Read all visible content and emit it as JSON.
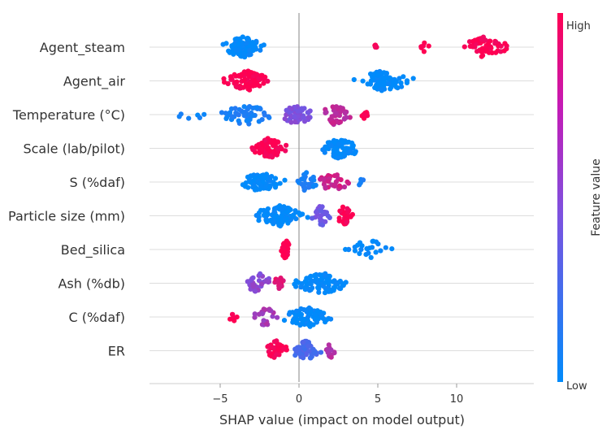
{
  "chart_data": {
    "type": "scatter",
    "subtype": "shap-beeswarm",
    "xlabel": "SHAP value (impact on model output)",
    "xticks": [
      -5,
      0,
      5,
      10
    ],
    "xlim": [
      -9.3,
      14.8
    ],
    "colorbar": {
      "title": "Feature value",
      "high_label": "High",
      "low_label": "Low",
      "low_color": "#008bfb",
      "mid_color": "#7c52e0",
      "high_color": "#ff0052"
    },
    "features": [
      {
        "name": "Agent_steam",
        "clusters": [
          {
            "min": -5.2,
            "max": -1.9,
            "n": 120,
            "color": 0.0
          },
          {
            "min": 4.5,
            "max": 5.0,
            "n": 5,
            "color": 1.0
          },
          {
            "min": 7.4,
            "max": 8.4,
            "n": 6,
            "color": 1.0
          },
          {
            "min": 10.0,
            "max": 13.6,
            "n": 60,
            "color": 1.0
          }
        ]
      },
      {
        "name": "Agent_air",
        "clusters": [
          {
            "min": -5.0,
            "max": -1.6,
            "n": 95,
            "color": 1.0
          },
          {
            "min": 3.2,
            "max": 7.6,
            "n": 80,
            "color": 0.0
          }
        ]
      },
      {
        "name": "Temperature (°C)",
        "clusters": [
          {
            "min": -8.3,
            "max": -5.3,
            "n": 6,
            "color": 0.05
          },
          {
            "min": -5.5,
            "max": -1.2,
            "n": 50,
            "color": 0.1
          },
          {
            "min": -1.5,
            "max": 1.2,
            "n": 50,
            "color": 0.5
          },
          {
            "min": 1.0,
            "max": 3.6,
            "n": 45,
            "color": 0.75
          },
          {
            "min": 3.8,
            "max": 4.6,
            "n": 8,
            "color": 1.0
          }
        ]
      },
      {
        "name": "Scale (lab/pilot)",
        "clusters": [
          {
            "min": -3.3,
            "max": -0.6,
            "n": 95,
            "color": 1.0
          },
          {
            "min": 1.0,
            "max": 4.2,
            "n": 80,
            "color": 0.0
          }
        ]
      },
      {
        "name": "S (%daf)",
        "clusters": [
          {
            "min": -4.1,
            "max": -0.6,
            "n": 75,
            "color": 0.0
          },
          {
            "min": -0.2,
            "max": 1.2,
            "n": 25,
            "color": 0.1
          },
          {
            "min": 1.0,
            "max": 3.5,
            "n": 30,
            "color": 0.8
          },
          {
            "min": 3.5,
            "max": 4.3,
            "n": 4,
            "color": 0.1
          }
        ]
      },
      {
        "name": "Particle size (mm)",
        "clusters": [
          {
            "min": -3.3,
            "max": 0.8,
            "n": 90,
            "color": 0.0
          },
          {
            "min": 0.6,
            "max": 2.2,
            "n": 25,
            "color": 0.45
          },
          {
            "min": 2.3,
            "max": 3.5,
            "n": 30,
            "color": 1.0
          }
        ]
      },
      {
        "name": "Bed_silica",
        "clusters": [
          {
            "min": -1.2,
            "max": -0.5,
            "n": 30,
            "color": 1.0
          },
          {
            "min": 2.4,
            "max": 6.3,
            "n": 25,
            "color": 0.0
          }
        ]
      },
      {
        "name": "Ash (%db)",
        "clusters": [
          {
            "min": -3.7,
            "max": -1.5,
            "n": 30,
            "color": 0.55
          },
          {
            "min": -1.8,
            "max": -0.8,
            "n": 15,
            "color": 0.9
          },
          {
            "min": -0.8,
            "max": 3.7,
            "n": 90,
            "color": 0.0
          }
        ]
      },
      {
        "name": "C (%daf)",
        "clusters": [
          {
            "min": -4.6,
            "max": -3.6,
            "n": 6,
            "color": 1.0
          },
          {
            "min": -3.0,
            "max": -1.2,
            "n": 25,
            "color": 0.65
          },
          {
            "min": -1.4,
            "max": 2.5,
            "n": 80,
            "color": 0.0
          }
        ]
      },
      {
        "name": "ER",
        "clusters": [
          {
            "min": -2.3,
            "max": -0.6,
            "n": 35,
            "color": 1.0
          },
          {
            "min": -0.6,
            "max": 1.5,
            "n": 60,
            "color": 0.3
          },
          {
            "min": 1.5,
            "max": 2.5,
            "n": 15,
            "color": 0.7
          }
        ]
      }
    ]
  }
}
